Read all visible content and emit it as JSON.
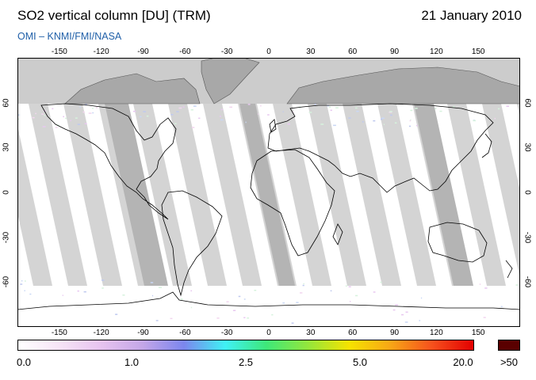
{
  "header": {
    "title": "SO2 vertical column [DU] (TRM)",
    "date": "21 January 2010",
    "credit": "OMI  –  KNMI/FMI/NASA"
  },
  "map": {
    "lon_ticks": [
      "-150",
      "-120",
      "-90",
      "-60",
      "-30",
      "0",
      "30",
      "60",
      "90",
      "120",
      "150"
    ],
    "lat_ticks": [
      "60",
      "30",
      "0",
      "-30",
      "-60"
    ],
    "lon_range": [
      -180,
      180
    ],
    "lat_range": [
      -90,
      90
    ],
    "colors": {
      "polar_night": "#cccccc",
      "no_data_orbit": "#d4d4d4",
      "no_data_orbit_dark": "#b4b4b4",
      "land_in_gap": "#a8a8a8",
      "coastline": "#000000"
    }
  },
  "colorbar": {
    "labels": [
      "0.0",
      "1.0",
      "2.5",
      "5.0",
      "20.0"
    ],
    "over_label": ">50",
    "over_color": "#5a0000",
    "gradient": [
      "#ffffff",
      "#f6e4f6",
      "#e7c3ef",
      "#c4a6e8",
      "#7c86ee",
      "#3ff1f5",
      "#3ee879",
      "#93e63c",
      "#f6e300",
      "#f8a616",
      "#f6511d",
      "#e30000"
    ]
  }
}
